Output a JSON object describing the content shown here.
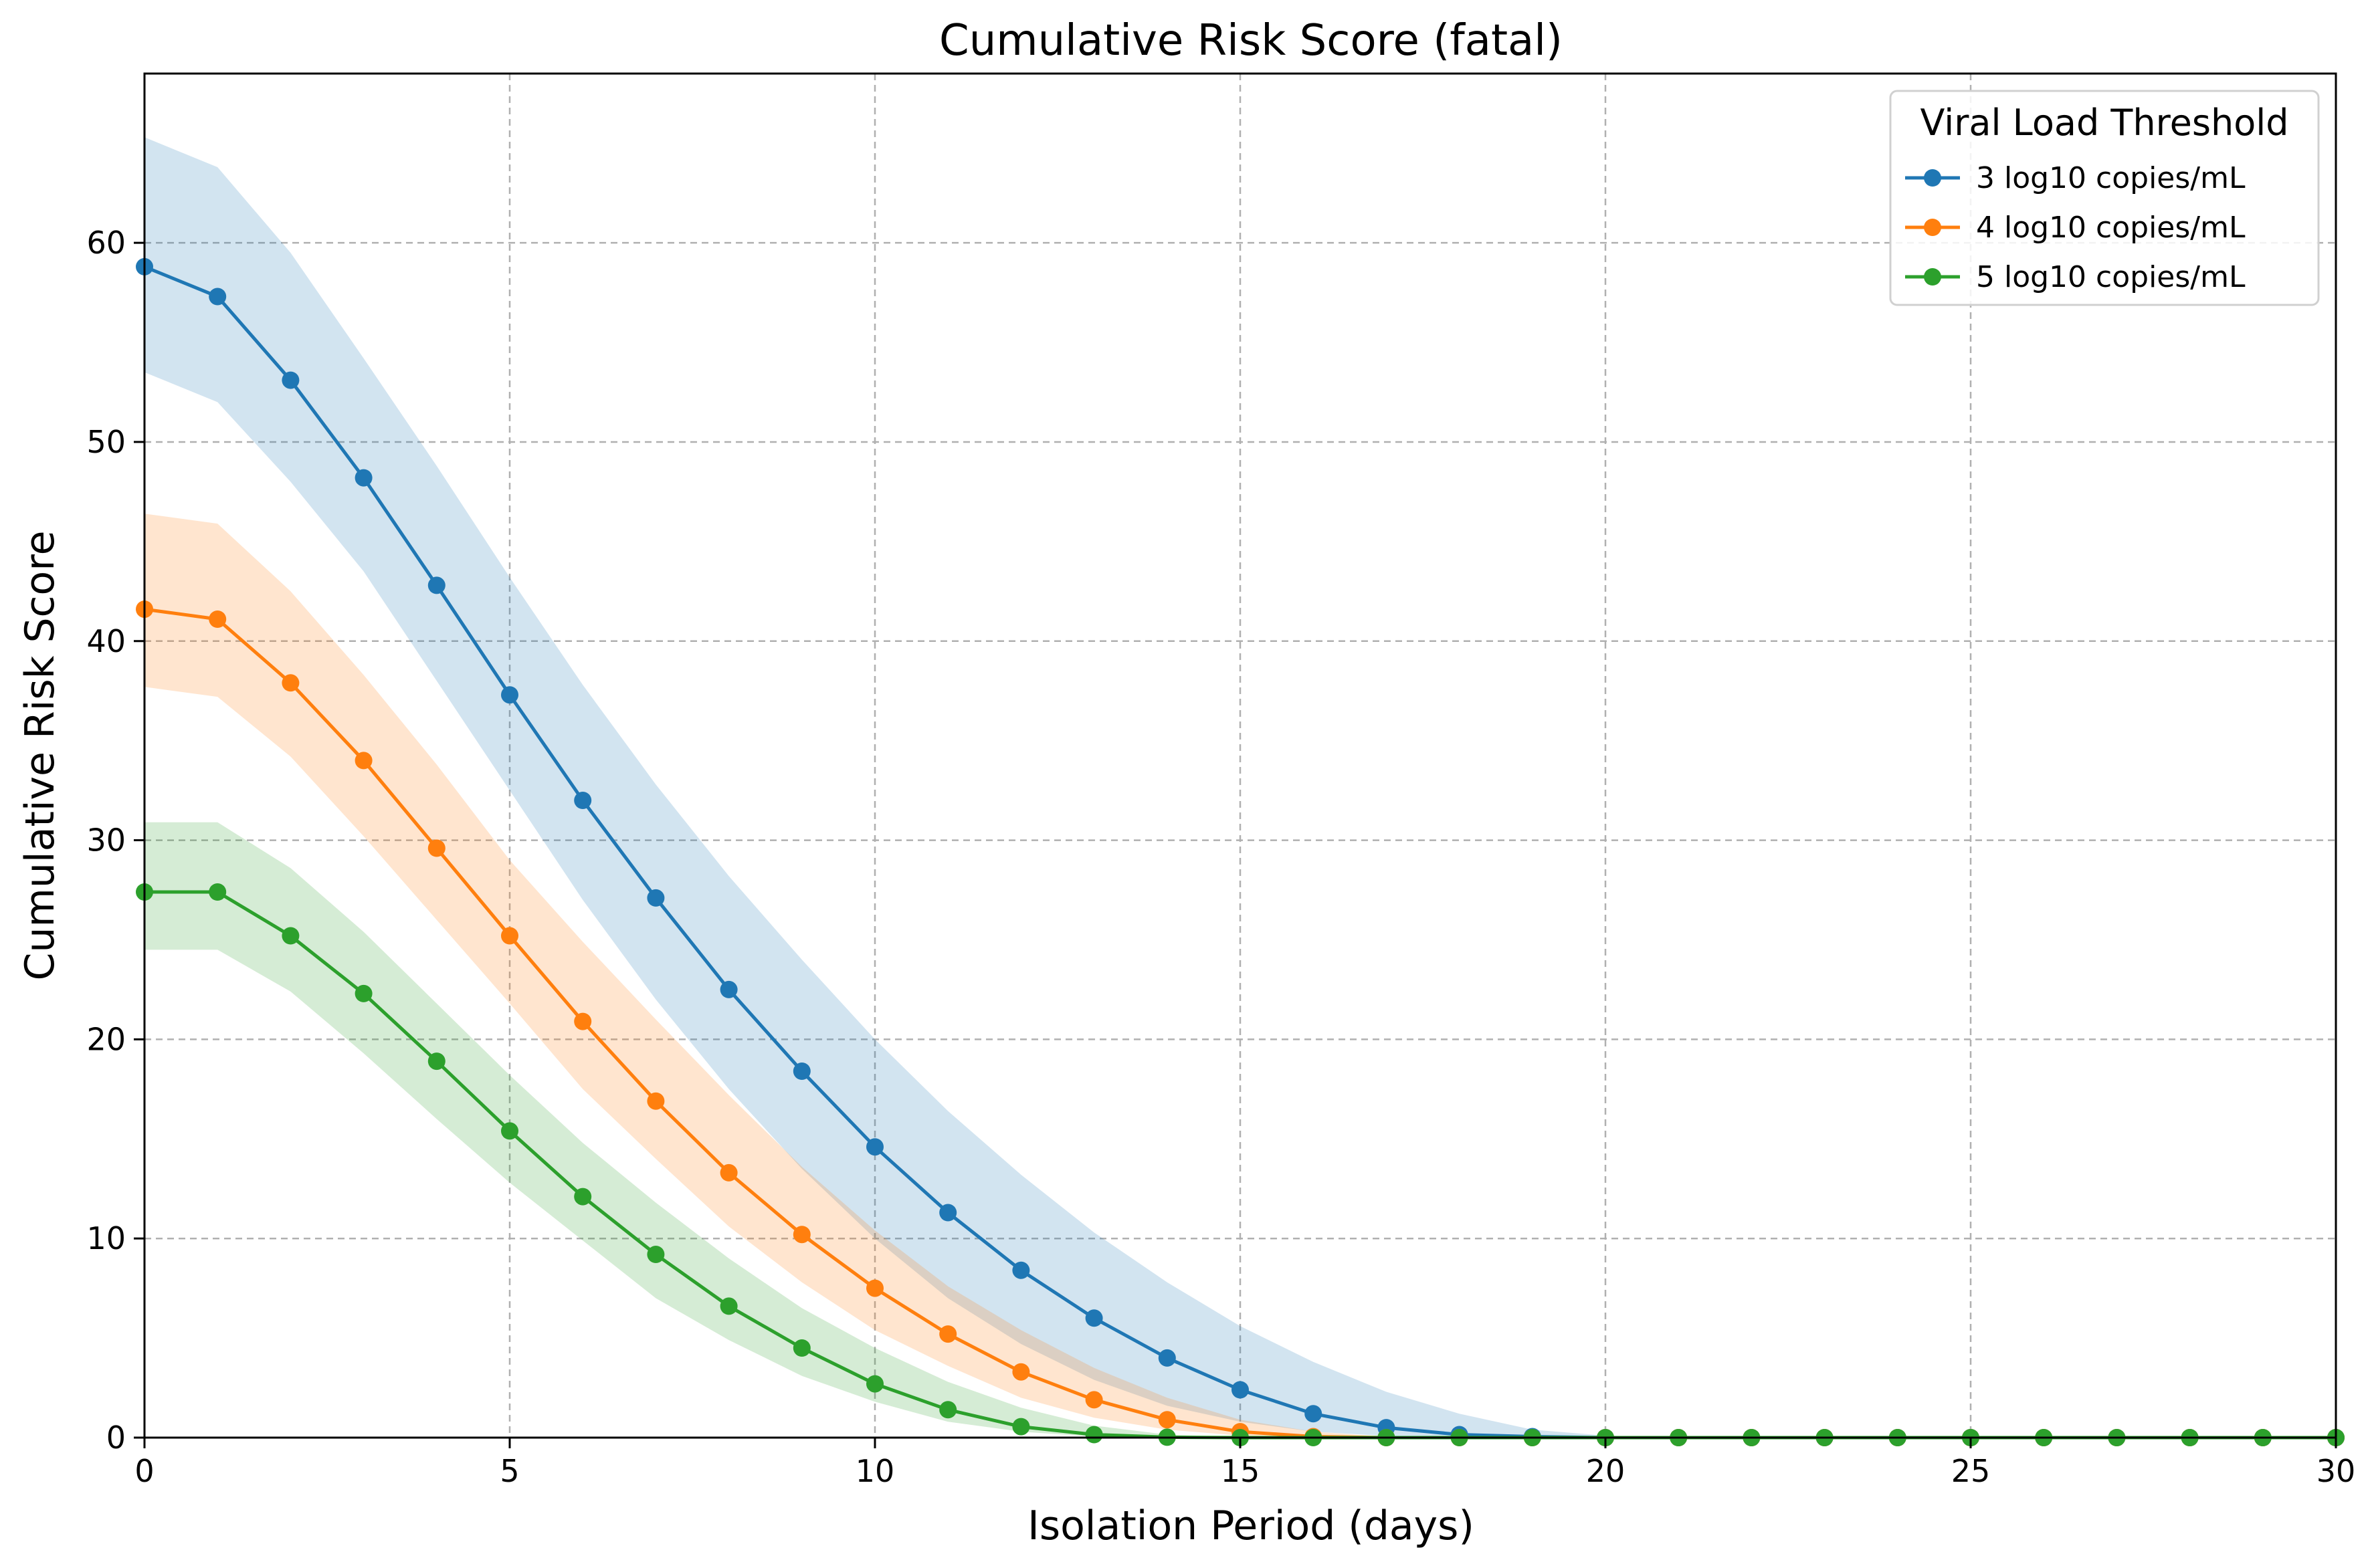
{
  "chart_data": {
    "type": "line",
    "title": "Cumulative Risk Score (fatal)",
    "xlabel": "Isolation Period (days)",
    "ylabel": "Cumulative Risk Score",
    "xlim": [
      0,
      30
    ],
    "ylim": [
      0,
      68.5
    ],
    "xticks": [
      0,
      5,
      10,
      15,
      20,
      25,
      30
    ],
    "yticks": [
      0,
      10,
      20,
      30,
      40,
      50,
      60
    ],
    "grid": true,
    "grid_style": "dashed",
    "legend": {
      "title": "Viral Load Threshold",
      "position": "top-right"
    },
    "x": [
      0,
      1,
      2,
      3,
      4,
      5,
      6,
      7,
      8,
      9,
      10,
      11,
      12,
      13,
      14,
      15,
      16,
      17,
      18,
      19,
      20,
      21,
      22,
      23,
      24,
      25,
      26,
      27,
      28,
      29,
      30
    ],
    "series": [
      {
        "name": "3 log10 copies/mL",
        "color": "#1f77b4",
        "values": [
          58.8,
          57.3,
          53.1,
          48.2,
          42.8,
          37.3,
          32.0,
          27.1,
          22.5,
          18.4,
          14.6,
          11.3,
          8.4,
          6.0,
          4.0,
          2.4,
          1.2,
          0.5,
          0.15,
          0.05,
          0,
          0,
          0,
          0,
          0,
          0,
          0,
          0,
          0,
          0,
          0
        ],
        "lower": [
          53.5,
          52.0,
          48.0,
          43.5,
          38.0,
          32.5,
          27.0,
          22.0,
          17.5,
          13.5,
          10.0,
          7.0,
          4.7,
          2.9,
          1.6,
          0.8,
          0.3,
          0.08,
          0.02,
          0,
          0,
          0,
          0,
          0,
          0,
          0,
          0,
          0,
          0,
          0,
          0
        ],
        "upper": [
          65.3,
          63.8,
          59.5,
          54.2,
          48.8,
          43.2,
          37.8,
          32.8,
          28.2,
          24.0,
          20.0,
          16.4,
          13.2,
          10.3,
          7.8,
          5.6,
          3.8,
          2.3,
          1.2,
          0.4,
          0.1,
          0,
          0,
          0,
          0,
          0,
          0,
          0,
          0,
          0,
          0
        ]
      },
      {
        "name": "4 log10 copies/mL",
        "color": "#ff7f0e",
        "values": [
          41.6,
          41.1,
          37.9,
          34.0,
          29.6,
          25.2,
          20.9,
          16.9,
          13.3,
          10.2,
          7.5,
          5.2,
          3.3,
          1.9,
          0.9,
          0.3,
          0.05,
          0,
          0,
          0,
          0,
          0,
          0,
          0,
          0,
          0,
          0,
          0,
          0,
          0,
          0
        ],
        "lower": [
          37.7,
          37.2,
          34.2,
          30.2,
          26.0,
          21.8,
          17.5,
          14.0,
          10.6,
          7.8,
          5.4,
          3.6,
          2.0,
          1.0,
          0.4,
          0.1,
          0,
          0,
          0,
          0,
          0,
          0,
          0,
          0,
          0,
          0,
          0,
          0,
          0,
          0,
          0
        ],
        "upper": [
          46.4,
          45.9,
          42.5,
          38.3,
          33.8,
          29.0,
          24.9,
          21.0,
          17.2,
          13.6,
          10.4,
          7.6,
          5.4,
          3.5,
          2.0,
          0.9,
          0.3,
          0.05,
          0,
          0,
          0,
          0,
          0,
          0,
          0,
          0,
          0,
          0,
          0,
          0,
          0
        ]
      },
      {
        "name": "5 log10 copies/mL",
        "color": "#2ca02c",
        "values": [
          27.4,
          27.4,
          25.2,
          22.3,
          18.9,
          15.4,
          12.1,
          9.2,
          6.6,
          4.5,
          2.7,
          1.4,
          0.55,
          0.15,
          0.02,
          0,
          0,
          0,
          0,
          0,
          0,
          0,
          0,
          0,
          0,
          0,
          0,
          0,
          0,
          0,
          0
        ],
        "lower": [
          24.5,
          24.5,
          22.4,
          19.3,
          16.0,
          12.8,
          9.9,
          7.0,
          4.9,
          3.1,
          1.8,
          0.8,
          0.3,
          0.05,
          0,
          0,
          0,
          0,
          0,
          0,
          0,
          0,
          0,
          0,
          0,
          0,
          0,
          0,
          0,
          0,
          0
        ],
        "upper": [
          30.9,
          30.9,
          28.6,
          25.4,
          21.8,
          18.2,
          14.8,
          11.8,
          9.0,
          6.5,
          4.5,
          2.8,
          1.5,
          0.6,
          0.15,
          0.02,
          0,
          0,
          0,
          0,
          0,
          0,
          0,
          0,
          0,
          0,
          0,
          0,
          0,
          0,
          0
        ]
      }
    ]
  }
}
